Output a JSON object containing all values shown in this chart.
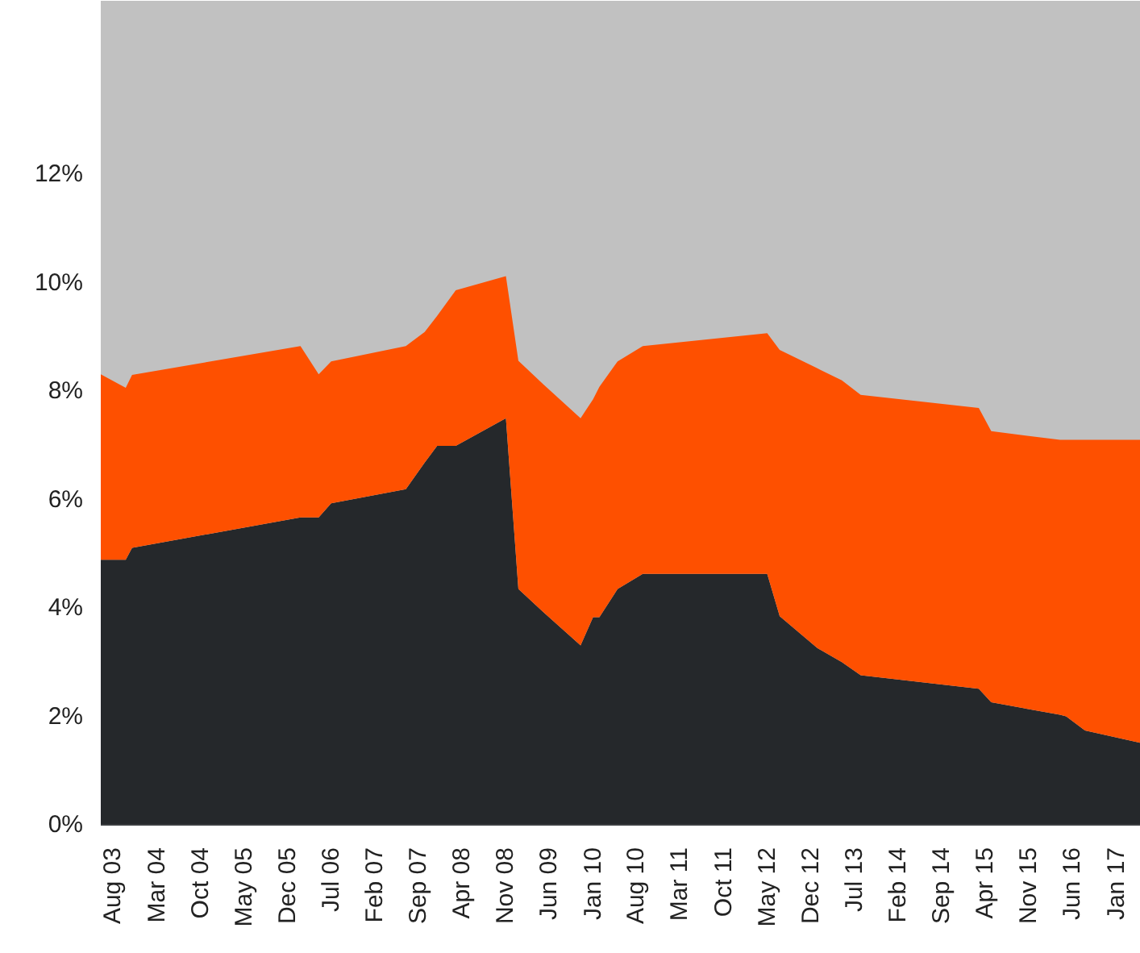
{
  "chart_data": {
    "type": "area",
    "stacked": true,
    "x": [
      "2003-06",
      "2003-10",
      "2003-11",
      "2006-02",
      "2006-05",
      "2006-07",
      "2007-07",
      "2007-10",
      "2007-12",
      "2008-03",
      "2008-11",
      "2009-01",
      "2009-05",
      "2009-11",
      "2010-01",
      "2010-02",
      "2010-05",
      "2010-09",
      "2012-05",
      "2012-07",
      "2013-01",
      "2013-05",
      "2013-08",
      "2015-03",
      "2015-05",
      "2016-04",
      "2016-05",
      "2016-08",
      "2017-05"
    ],
    "series": [
      {
        "color": "#25282b",
        "values": [
          4.89,
          4.89,
          5.11,
          5.67,
          5.67,
          5.93,
          6.19,
          6.68,
          6.99,
          6.99,
          7.5,
          4.35,
          3.93,
          3.31,
          3.83,
          3.83,
          4.35,
          4.63,
          4.63,
          3.85,
          3.26,
          3.0,
          2.76,
          2.51,
          2.26,
          2.03,
          2.0,
          1.74,
          1.51
        ]
      },
      {
        "color": "#fe5000",
        "values": [
          3.42,
          3.17,
          3.19,
          3.16,
          2.64,
          2.62,
          2.64,
          2.41,
          2.4,
          2.87,
          2.62,
          4.21,
          4.2,
          4.19,
          4.02,
          4.25,
          4.2,
          4.2,
          4.44,
          4.91,
          5.16,
          5.2,
          5.17,
          5.18,
          5.0,
          5.07,
          5.1,
          5.36,
          5.59
        ]
      }
    ],
    "bands": [
      {
        "axis": "y",
        "from": 0,
        "to": 15.2,
        "color": "#c1c1c1"
      }
    ],
    "xlim": [
      "2003-06",
      "2017-05"
    ],
    "xticks": [
      {
        "value": "2003-08",
        "label": "Aug 03"
      },
      {
        "value": "2004-03",
        "label": "Mar 04"
      },
      {
        "value": "2004-10",
        "label": "Oct 04"
      },
      {
        "value": "2005-05",
        "label": "May 05"
      },
      {
        "value": "2005-12",
        "label": "Dec 05"
      },
      {
        "value": "2006-07",
        "label": "Jul 06"
      },
      {
        "value": "2007-02",
        "label": "Feb 07"
      },
      {
        "value": "2007-09",
        "label": "Sep 07"
      },
      {
        "value": "2008-04",
        "label": "Apr 08"
      },
      {
        "value": "2008-11",
        "label": "Nov 08"
      },
      {
        "value": "2009-06",
        "label": "Jun 09"
      },
      {
        "value": "2010-01",
        "label": "Jan 10"
      },
      {
        "value": "2010-08",
        "label": "Aug 10"
      },
      {
        "value": "2011-03",
        "label": "Mar 11"
      },
      {
        "value": "2011-10",
        "label": "Oct 11"
      },
      {
        "value": "2012-05",
        "label": "May 12"
      },
      {
        "value": "2012-12",
        "label": "Dec 12"
      },
      {
        "value": "2013-07",
        "label": "Jul 13"
      },
      {
        "value": "2014-02",
        "label": "Feb 14"
      },
      {
        "value": "2014-09",
        "label": "Sep 14"
      },
      {
        "value": "2015-04",
        "label": "Apr 15"
      },
      {
        "value": "2015-11",
        "label": "Nov 15"
      },
      {
        "value": "2016-06",
        "label": "Jun 16"
      },
      {
        "value": "2017-01",
        "label": "Jan 17"
      }
    ],
    "ylim": [
      0,
      15.2
    ],
    "yticks": [
      {
        "value": 0,
        "label": "0%"
      },
      {
        "value": 2,
        "label": "2%"
      },
      {
        "value": 4,
        "label": "4%"
      },
      {
        "value": 6,
        "label": "6%"
      },
      {
        "value": 8,
        "label": "8%"
      },
      {
        "value": 10,
        "label": "10%"
      },
      {
        "value": 12,
        "label": "12%"
      }
    ]
  }
}
